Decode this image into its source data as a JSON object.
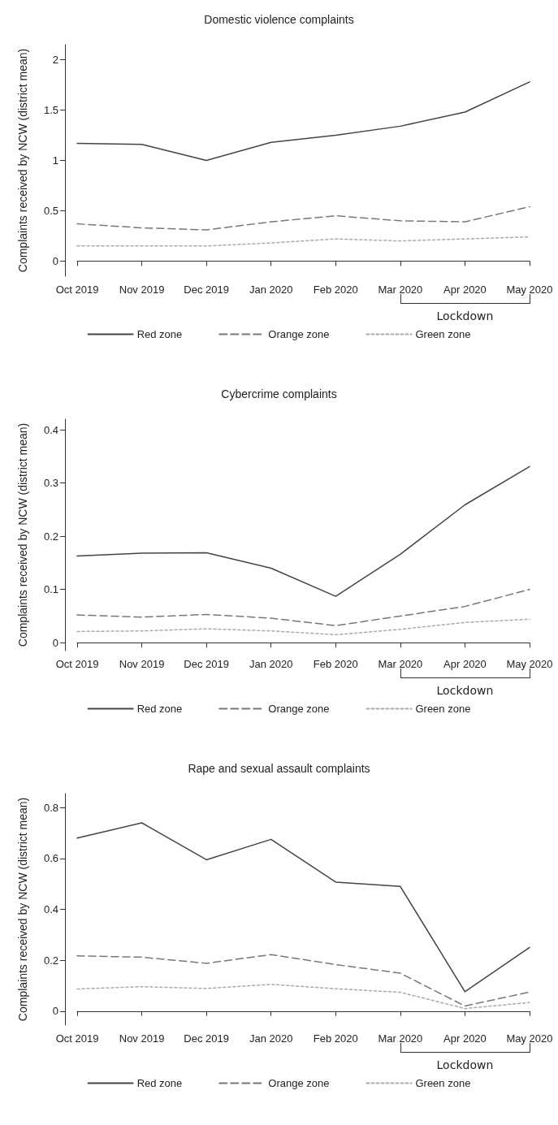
{
  "chart_data": [
    {
      "type": "line",
      "title": "Domestic violence complaints",
      "ylabel": "Complaints received by NCW (district mean)",
      "categories": [
        "Oct 2019",
        "Nov 2019",
        "Dec 2019",
        "Jan 2020",
        "Feb 2020",
        "Mar 2020",
        "Apr 2020",
        "May 2020"
      ],
      "series": [
        {
          "name": "Red zone",
          "color": "#444444",
          "line_style": "solid",
          "values": [
            1.17,
            1.16,
            1.0,
            1.18,
            1.25,
            1.34,
            1.48,
            1.78
          ]
        },
        {
          "name": "Orange zone",
          "color": "#777777",
          "line_style": "dashed",
          "values": [
            0.37,
            0.33,
            0.31,
            0.39,
            0.45,
            0.4,
            0.39,
            0.54
          ]
        },
        {
          "name": "Green zone",
          "color": "#aaaaaa",
          "line_style": "dotted",
          "values": [
            0.15,
            0.15,
            0.15,
            0.18,
            0.22,
            0.2,
            0.22,
            0.24
          ]
        }
      ],
      "ylim": [
        -0.15,
        2.15
      ],
      "yticks": [
        0,
        0.5,
        1,
        1.5,
        2
      ],
      "annotations": [
        "Lockdown"
      ],
      "grid": false,
      "legend": "bottom",
      "marker": "none"
    },
    {
      "type": "line",
      "title": "Cybercrime complaints",
      "ylabel": "Complaints received by NCW (district mean)",
      "categories": [
        "Oct 2019",
        "Nov 2019",
        "Dec 2019",
        "Jan 2020",
        "Feb 2020",
        "Mar 2020",
        "Apr 2020",
        "May 2020"
      ],
      "series": [
        {
          "name": "Red zone",
          "color": "#444444",
          "line_style": "solid",
          "values": [
            0.163,
            0.168,
            0.169,
            0.14,
            0.087,
            0.166,
            0.259,
            0.331
          ]
        },
        {
          "name": "Orange zone",
          "color": "#777777",
          "line_style": "dashed",
          "values": [
            0.052,
            0.048,
            0.053,
            0.046,
            0.032,
            0.05,
            0.068,
            0.1
          ]
        },
        {
          "name": "Green zone",
          "color": "#aaaaaa",
          "line_style": "dotted",
          "values": [
            0.021,
            0.022,
            0.026,
            0.022,
            0.015,
            0.025,
            0.038,
            0.044
          ]
        }
      ],
      "ylim": [
        -0.015,
        0.42
      ],
      "yticks": [
        0,
        0.1,
        0.2,
        0.3,
        0.4
      ],
      "annotations": [
        "Lockdown"
      ],
      "grid": false,
      "legend": "bottom",
      "marker": "none"
    },
    {
      "type": "line",
      "title": "Rape and sexual assault complaints",
      "ylabel": "Complaints received by NCW (district mean)",
      "categories": [
        "Oct 2019",
        "Nov 2019",
        "Dec 2019",
        "Jan 2020",
        "Feb 2020",
        "Mar 2020",
        "Apr 2020",
        "May 2020"
      ],
      "series": [
        {
          "name": "Red zone",
          "color": "#444444",
          "line_style": "solid",
          "values": [
            0.68,
            0.74,
            0.595,
            0.675,
            0.507,
            0.49,
            0.076,
            0.25
          ]
        },
        {
          "name": "Orange zone",
          "color": "#777777",
          "line_style": "dashed",
          "values": [
            0.217,
            0.212,
            0.188,
            0.222,
            0.183,
            0.149,
            0.02,
            0.075
          ]
        },
        {
          "name": "Green zone",
          "color": "#aaaaaa",
          "line_style": "dotted",
          "values": [
            0.087,
            0.096,
            0.089,
            0.105,
            0.088,
            0.074,
            0.01,
            0.034
          ]
        }
      ],
      "ylim": [
        -0.055,
        0.855
      ],
      "yticks": [
        0,
        0.2,
        0.4,
        0.6,
        0.8
      ],
      "annotations": [
        "Lockdown"
      ],
      "grid": false,
      "legend": "bottom",
      "marker": "none"
    }
  ]
}
